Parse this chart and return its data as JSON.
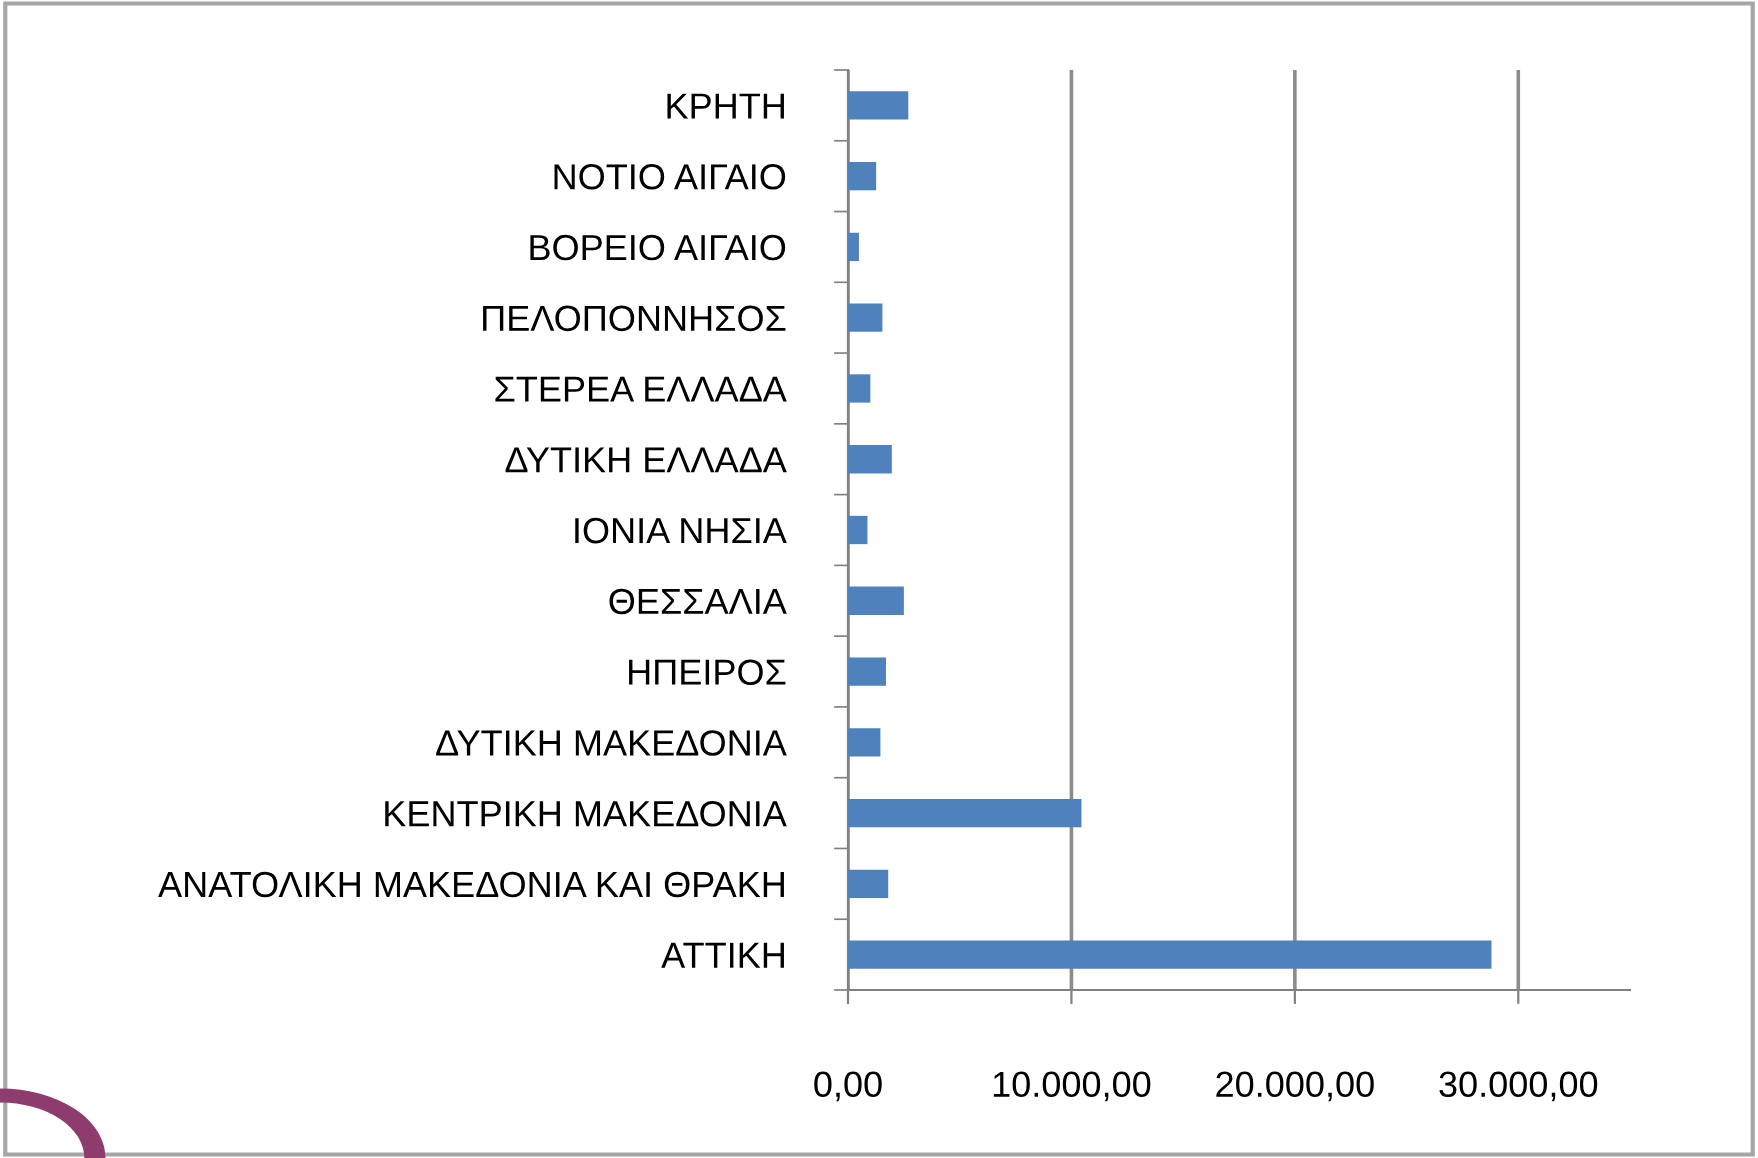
{
  "chart_data": {
    "type": "bar",
    "orientation": "horizontal",
    "categories": [
      "ΚΡΗΤΗ",
      "ΝΟΤΙΟ ΑΙΓΑΙΟ",
      "ΒΟΡΕΙΟ ΑΙΓΑΙΟ",
      "ΠΕΛΟΠΟΝΝΗΣΟΣ",
      "ΣΤΕΡΕΑ ΕΛΛΑΔΑ",
      "ΔΥΤΙΚΗ ΕΛΛΑΔΑ",
      "ΙΟΝΙΑ ΝΗΣΙΑ",
      "ΘΕΣΣΑΛΙΑ",
      "ΗΠΕΙΡΟΣ",
      "ΔΥΤΙΚΗ ΜΑΚΕΔΟΝΙΑ",
      "ΚΕΝΤΡΙΚΗ ΜΑΚΕΔΟΝΙΑ",
      "ΑΝΑΤΟΛΙΚΗ ΜΑΚΕΔΟΝΙΑ ΚΑΙ ΘΡΑΚΗ",
      "ΑΤΤΙΚΗ"
    ],
    "values": [
      2700,
      1260,
      490,
      1540,
      1000,
      1960,
      870,
      2500,
      1700,
      1450,
      10450,
      1800,
      28800
    ],
    "color": "#4f81bd",
    "xlim": [
      0,
      35000
    ],
    "xticks": [
      {
        "value": 0,
        "label": "0,00"
      },
      {
        "value": 10000,
        "label": "10.000,00"
      },
      {
        "value": 20000,
        "label": "20.000,00"
      },
      {
        "value": 30000,
        "label": "30.000,00"
      }
    ],
    "grid": "x"
  }
}
